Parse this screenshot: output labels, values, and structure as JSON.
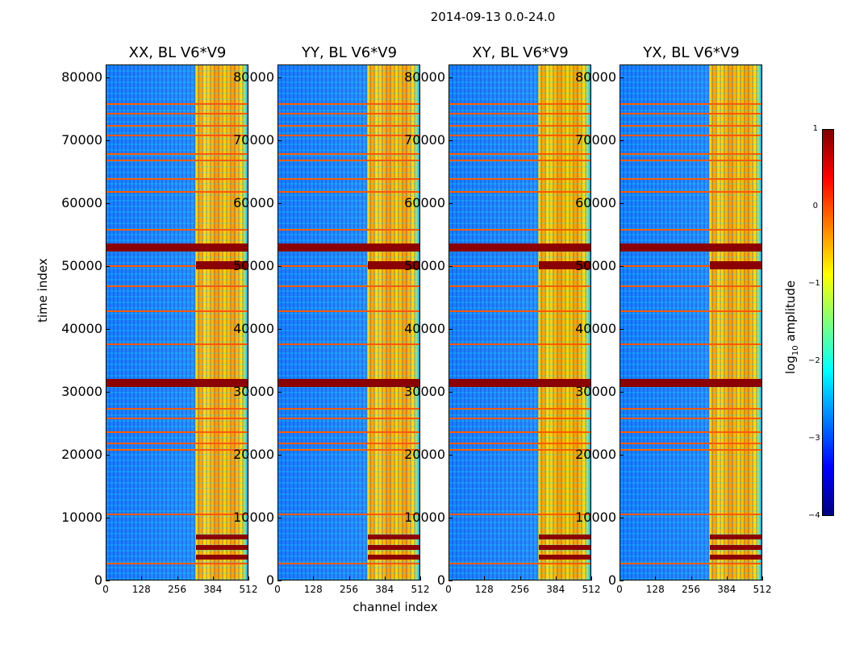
{
  "chart_data": {
    "type": "heatmap",
    "suptitle": "2014-09-13 0.0-24.0",
    "xlabel": "channel index",
    "ylabel": "time index",
    "xlim": [
      0,
      512
    ],
    "ylim": [
      0,
      82000
    ],
    "x_ticks": [
      "0",
      "128",
      "256",
      "384",
      "512"
    ],
    "y_ticks": [
      "0",
      "10000",
      "20000",
      "30000",
      "40000",
      "50000",
      "60000",
      "70000",
      "80000"
    ],
    "colorbar": {
      "label": "log10 amplitude",
      "label_main": "log",
      "label_sub": "10",
      "label_tail": " amplitude",
      "range": [
        -4,
        1
      ],
      "ticks": [
        "1",
        "0",
        "−1",
        "−2",
        "−3",
        "−4"
      ],
      "colormap": [
        "#00007f",
        "#0000ff",
        "#007fff",
        "#00ffff",
        "#7fff7f",
        "#ffff00",
        "#ff7f00",
        "#ff0000",
        "#7f0000"
      ]
    },
    "panels": [
      {
        "title": "XX, BL V6*V9"
      },
      {
        "title": "YY, BL V6*V9"
      },
      {
        "title": "XY, BL V6*V9"
      },
      {
        "title": "YX, BL V6*V9"
      }
    ],
    "bright_channel_band": [
      325,
      512
    ],
    "strong_time_bands": [
      3800,
      5400,
      7000,
      31500,
      50200,
      53000
    ],
    "flagged_time_rows": [
      3000,
      10800,
      21000,
      22000,
      23800,
      26000,
      27500,
      37800,
      43000,
      47000,
      50200,
      56000,
      62000,
      64000,
      67000,
      68000,
      71000,
      72500,
      74500,
      76000
    ]
  }
}
